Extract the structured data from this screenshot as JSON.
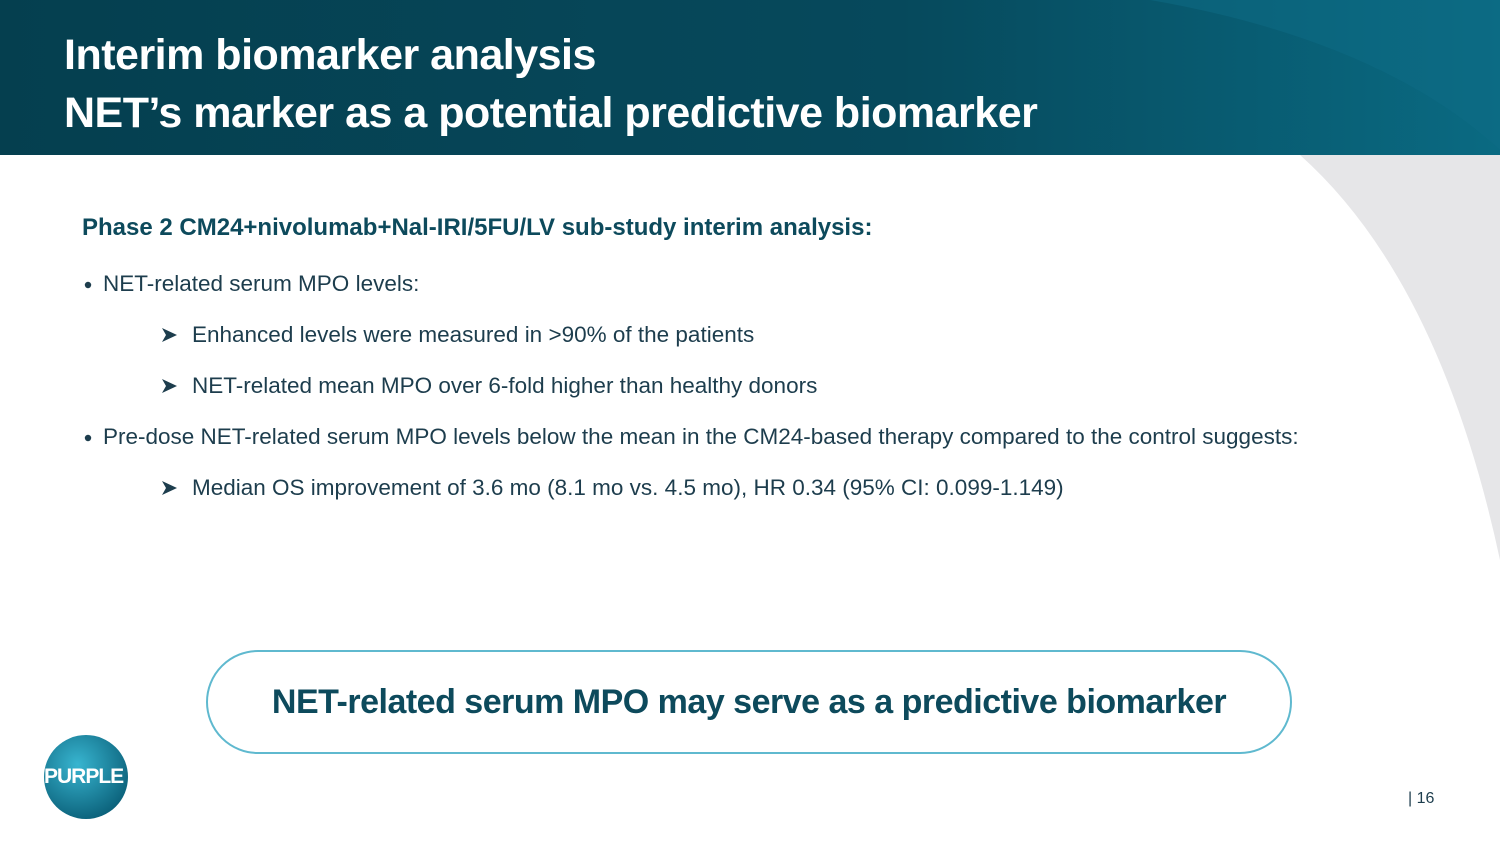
{
  "header": {
    "title_lines": [
      "Interim biomarker analysis",
      "NET’s marker as a potential predictive biomarker"
    ]
  },
  "content": {
    "heading": "Phase 2 CM24+nivolumab+Nal-IRI/5FU/LV sub-study interim analysis:",
    "bullets": [
      {
        "text": "NET-related serum MPO levels:",
        "sub": [
          "Enhanced levels were measured in >90% of the patients",
          "NET-related mean MPO over 6-fold higher than healthy donors"
        ]
      },
      {
        "text": "Pre-dose NET-related serum MPO levels below the mean in the CM24-based therapy compared to the control suggests:",
        "sub": [
          "Median OS improvement of 3.6 mo (8.1 mo vs. 4.5 mo), HR 0.34 (95% CI: 0.099-1.149)"
        ]
      }
    ]
  },
  "callout": "NET-related serum MPO may serve as a predictive biomarker",
  "logo": "PURPLE",
  "page_number": "| 16"
}
